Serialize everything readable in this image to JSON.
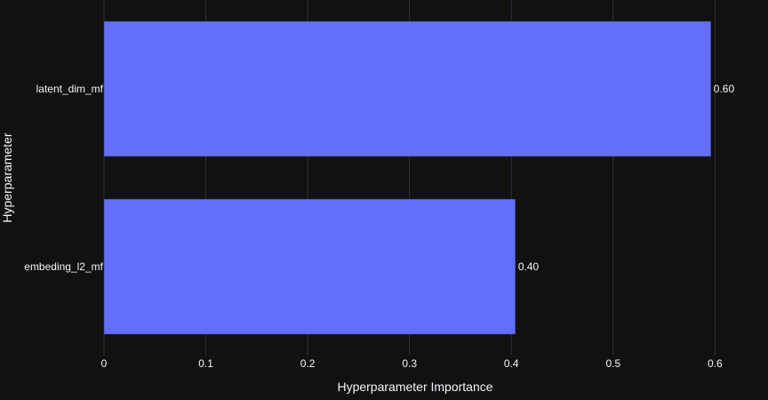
{
  "chart_data": {
    "type": "bar",
    "orientation": "horizontal",
    "categories": [
      "latent_dim_mf",
      "embeding_l2_mf"
    ],
    "values": [
      0.596,
      0.404
    ],
    "data_labels": [
      "0.60",
      "0.40"
    ],
    "xlabel": "Hyperparameter Importance",
    "ylabel": "Hyperparameter",
    "xlim": [
      0,
      0.625
    ],
    "xticks": [
      0,
      0.1,
      0.2,
      0.3,
      0.4,
      0.5,
      0.6
    ],
    "xtick_labels": [
      "0",
      "0.1",
      "0.2",
      "0.3",
      "0.4",
      "0.5",
      "0.6"
    ],
    "grid": true,
    "legend": "none",
    "colors": {
      "background": "#111111",
      "bar": "#636efa",
      "grid": "#283442",
      "text": "#f2f5fa"
    }
  }
}
